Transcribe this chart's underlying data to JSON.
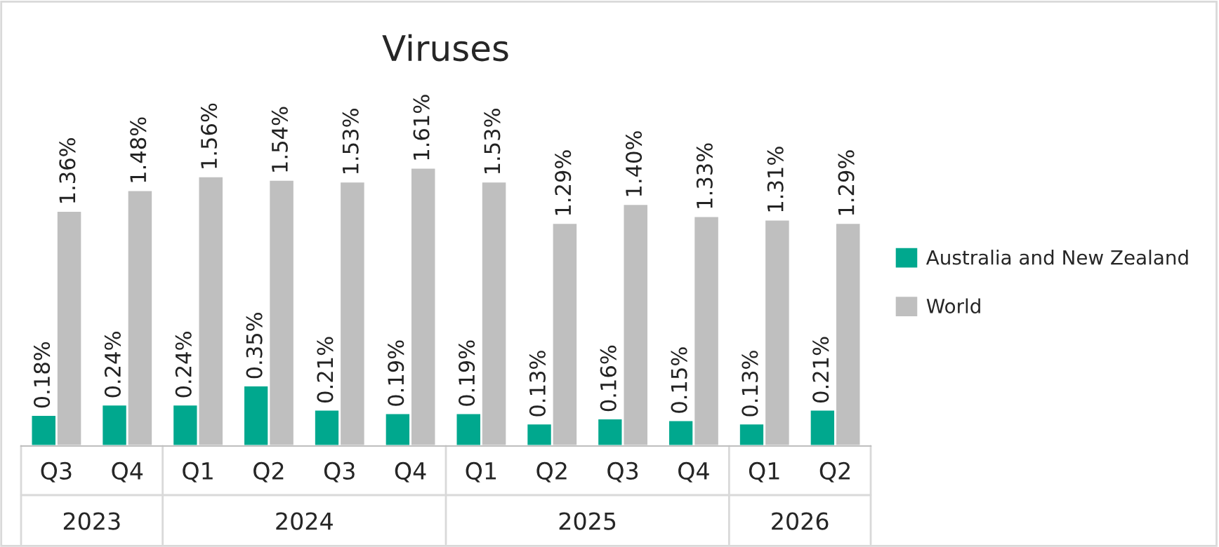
{
  "chart_data": {
    "type": "bar",
    "title": "Viruses",
    "categories": [
      "Q3",
      "Q4",
      "Q1",
      "Q2",
      "Q3",
      "Q4",
      "Q1",
      "Q2",
      "Q3",
      "Q4",
      "Q1",
      "Q2"
    ],
    "annotations": [
      "2023",
      "2024",
      "2025",
      "2026"
    ],
    "series": [
      {
        "name": "Australia and New Zealand",
        "color": "#00a88e",
        "values": [
          0.18,
          0.24,
          0.24,
          0.35,
          0.21,
          0.19,
          0.19,
          0.13,
          0.16,
          0.15,
          0.13,
          0.21
        ],
        "value_labels": [
          "0.18%",
          "0.24%",
          "0.24%",
          "0.35%",
          "0.21%",
          "0.19%",
          "0.19%",
          "0.13%",
          "0.16%",
          "0.15%",
          "0.13%",
          "0.21%"
        ]
      },
      {
        "name": "World",
        "color": "#bfbfbf",
        "values": [
          1.36,
          1.48,
          1.56,
          1.54,
          1.53,
          1.61,
          1.53,
          1.29,
          1.4,
          1.33,
          1.31,
          1.29
        ],
        "value_labels": [
          "1.36%",
          "1.48%",
          "1.56%",
          "1.54%",
          "1.53%",
          "1.61%",
          "1.53%",
          "1.29%",
          "1.40%",
          "1.33%",
          "1.31%",
          "1.29%"
        ]
      }
    ],
    "legend": "right",
    "grid": false
  }
}
